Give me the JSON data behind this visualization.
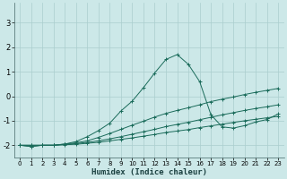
{
  "xlabel": "Humidex (Indice chaleur)",
  "bg_color": "#cce8e8",
  "grid_color": "#aacece",
  "line_color": "#1a6b5a",
  "x_values": [
    0,
    1,
    2,
    3,
    4,
    5,
    6,
    7,
    8,
    9,
    10,
    11,
    12,
    13,
    14,
    15,
    16,
    17,
    18,
    19,
    20,
    21,
    22,
    23
  ],
  "lines": [
    [
      -2.0,
      -2.05,
      -2.0,
      -2.0,
      -1.95,
      -1.85,
      -1.65,
      -1.4,
      -1.1,
      -0.6,
      -0.2,
      0.35,
      0.95,
      1.5,
      1.7,
      1.3,
      0.6,
      -0.75,
      -1.25,
      -1.3,
      -1.2,
      -1.05,
      -0.95,
      -0.72
    ],
    [
      -2.0,
      -2.05,
      -2.0,
      -2.0,
      -1.95,
      -1.9,
      -1.82,
      -1.68,
      -1.52,
      -1.35,
      -1.18,
      -1.02,
      -0.85,
      -0.7,
      -0.58,
      -0.47,
      -0.35,
      -0.22,
      -0.12,
      -0.03,
      0.07,
      0.16,
      0.24,
      0.32
    ],
    [
      -2.0,
      -2.0,
      -2.0,
      -2.0,
      -1.97,
      -1.93,
      -1.88,
      -1.82,
      -1.74,
      -1.65,
      -1.55,
      -1.45,
      -1.35,
      -1.24,
      -1.15,
      -1.06,
      -0.96,
      -0.86,
      -0.76,
      -0.67,
      -0.58,
      -0.5,
      -0.43,
      -0.35
    ],
    [
      -2.0,
      -2.0,
      -2.0,
      -2.0,
      -1.98,
      -1.96,
      -1.92,
      -1.88,
      -1.82,
      -1.76,
      -1.7,
      -1.63,
      -1.56,
      -1.48,
      -1.42,
      -1.36,
      -1.28,
      -1.21,
      -1.14,
      -1.07,
      -1.0,
      -0.94,
      -0.88,
      -0.82
    ]
  ],
  "ylim": [
    -2.5,
    3.8
  ],
  "xlim": [
    -0.5,
    23.5
  ],
  "yticks": [
    -2,
    -1,
    0,
    1,
    2,
    3
  ],
  "xticks": [
    0,
    1,
    2,
    3,
    4,
    5,
    6,
    7,
    8,
    9,
    10,
    11,
    12,
    13,
    14,
    15,
    16,
    17,
    18,
    19,
    20,
    21,
    22,
    23
  ],
  "figsize": [
    3.2,
    2.0
  ],
  "dpi": 100
}
